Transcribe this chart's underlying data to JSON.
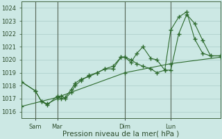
{
  "bg_color": "#cce8e4",
  "grid_color": "#aaccc8",
  "line_color": "#2d6a2d",
  "marker": "+",
  "marker_size": 4,
  "linewidth": 0.8,
  "ylim": [
    1015.5,
    1024.5
  ],
  "yticks": [
    1016,
    1017,
    1018,
    1019,
    1020,
    1021,
    1022,
    1023,
    1024
  ],
  "xlabel": "Pression niveau de la mer( hPa )",
  "xlabel_fontsize": 7.5,
  "tick_fontsize": 6,
  "xtick_labels": [
    "Sam",
    "Mar",
    "Dim",
    "Lun"
  ],
  "xtick_positions": [
    0.07,
    0.18,
    0.52,
    0.75
  ],
  "line1_x": [
    0.0,
    0.07,
    0.1,
    0.13,
    0.18,
    0.2,
    0.22,
    0.25,
    0.27,
    0.3,
    0.34,
    0.38,
    0.42,
    0.46,
    0.5,
    0.52,
    0.55,
    0.58,
    0.61,
    0.65,
    0.68,
    0.72,
    0.75,
    0.79,
    0.83,
    0.87,
    0.91,
    0.95,
    1.0
  ],
  "line1_y": [
    1018.3,
    1017.6,
    1016.8,
    1016.5,
    1017.2,
    1017.0,
    1017.1,
    1017.7,
    1018.2,
    1018.5,
    1018.7,
    1019.0,
    1019.3,
    1019.5,
    1020.2,
    1020.2,
    1019.8,
    1020.5,
    1021.0,
    1020.1,
    1020.0,
    1019.2,
    1022.3,
    1023.3,
    1023.7,
    1021.6,
    1020.5,
    1020.3,
    1020.3
  ],
  "line2_x": [
    0.0,
    0.07,
    0.1,
    0.13,
    0.18,
    0.2,
    0.22,
    0.25,
    0.27,
    0.3,
    0.34,
    0.38,
    0.42,
    0.46,
    0.5,
    0.52,
    0.55,
    0.58,
    0.61,
    0.65,
    0.68,
    0.72,
    0.75,
    0.79,
    0.83,
    0.87,
    0.91,
    0.95,
    1.0
  ],
  "line2_y": [
    1018.3,
    1017.6,
    1016.8,
    1016.6,
    1017.0,
    1017.2,
    1017.0,
    1017.5,
    1018.0,
    1018.4,
    1018.8,
    1019.0,
    1019.3,
    1019.3,
    1020.2,
    1020.2,
    1020.0,
    1019.7,
    1019.5,
    1019.3,
    1019.0,
    1019.2,
    1019.2,
    1022.0,
    1023.5,
    1022.8,
    1021.5,
    1020.3,
    1020.3
  ],
  "line3_x": [
    0.0,
    0.18,
    0.52,
    0.75,
    1.0
  ],
  "line3_y": [
    1016.4,
    1017.1,
    1019.0,
    1019.7,
    1020.2
  ],
  "vline_positions": [
    0.07,
    0.18,
    0.52,
    0.75
  ],
  "vline_color": "#556655",
  "spine_color": "#446644"
}
